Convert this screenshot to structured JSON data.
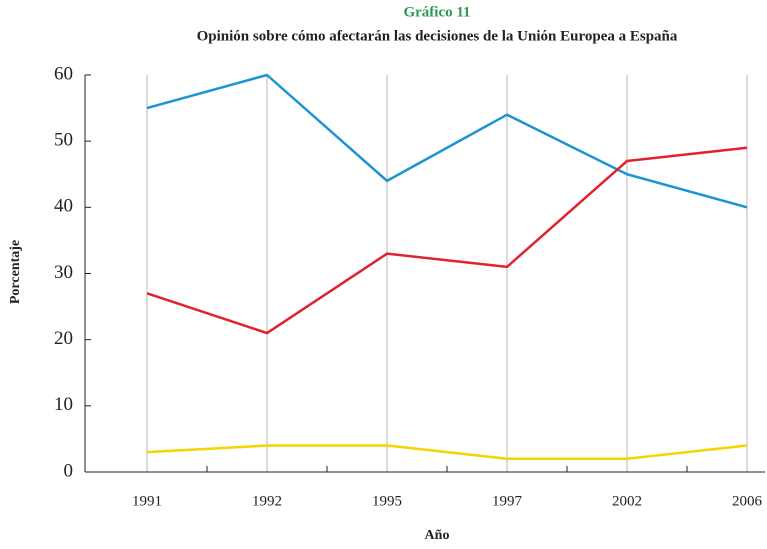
{
  "chart_data": {
    "type": "line",
    "title": "Gráfico 11",
    "subtitle": "Opinión sobre cómo afectarán las decisiones de la Unión Europea a España",
    "xlabel": "Año",
    "ylabel": "Porcentaje",
    "categories": [
      "1991",
      "1992",
      "1995",
      "1997",
      "2002",
      "2006"
    ],
    "series": [
      {
        "color": "#1b95d2",
        "values": [
          55,
          60,
          44,
          54,
          45,
          40
        ]
      },
      {
        "color": "#e0222c",
        "values": [
          27,
          21,
          33,
          31,
          47,
          49
        ]
      },
      {
        "color": "#f4d500",
        "values": [
          3,
          4,
          4,
          2,
          2,
          4
        ]
      }
    ],
    "ylim": [
      0,
      60
    ],
    "yticks": [
      0,
      10,
      20,
      30,
      40,
      50,
      60
    ],
    "grid": true
  }
}
